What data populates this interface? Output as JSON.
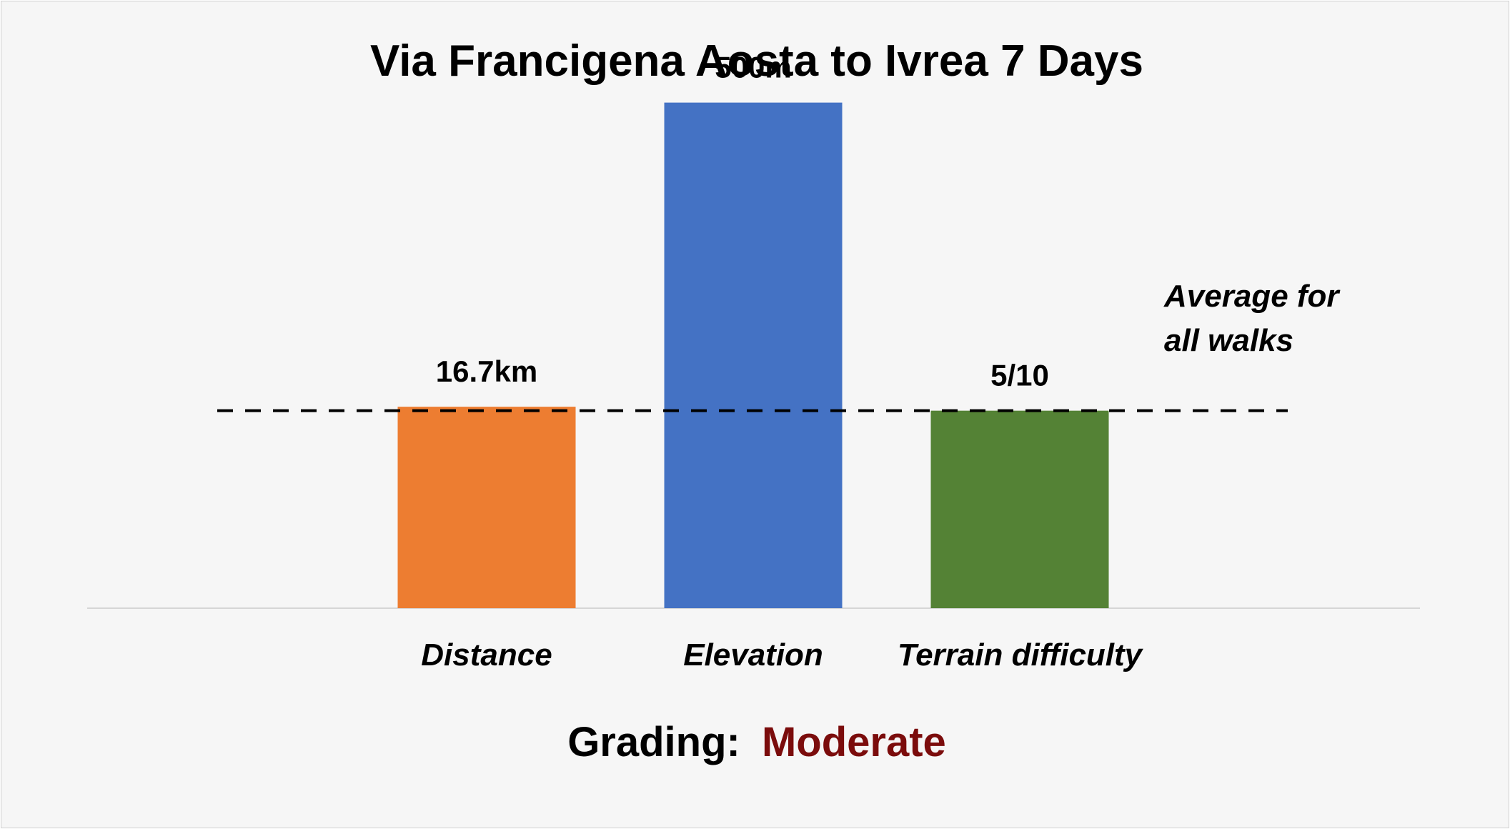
{
  "chart_data": {
    "type": "bar",
    "title": "Via Francigena Aosta to Ivrea 7 Days",
    "categories": [
      "Distance",
      "Elevation",
      "Terrain difficulty"
    ],
    "values": [
      1.02,
      2.56,
      1.0
    ],
    "value_labels": [
      "16.7km",
      "500m",
      "5/10"
    ],
    "colors": [
      "#ED7D31",
      "#4472C4",
      "#548235"
    ],
    "average_line": {
      "value": 1.0,
      "label_lines": [
        "Average for",
        "all walks"
      ],
      "style": "dashed"
    },
    "ylim": [
      0,
      3
    ],
    "xlabel": "",
    "ylabel": "",
    "grid": false
  },
  "grading": {
    "label": "Grading:",
    "value": "Moderate",
    "value_color": "#7B0C0C"
  }
}
